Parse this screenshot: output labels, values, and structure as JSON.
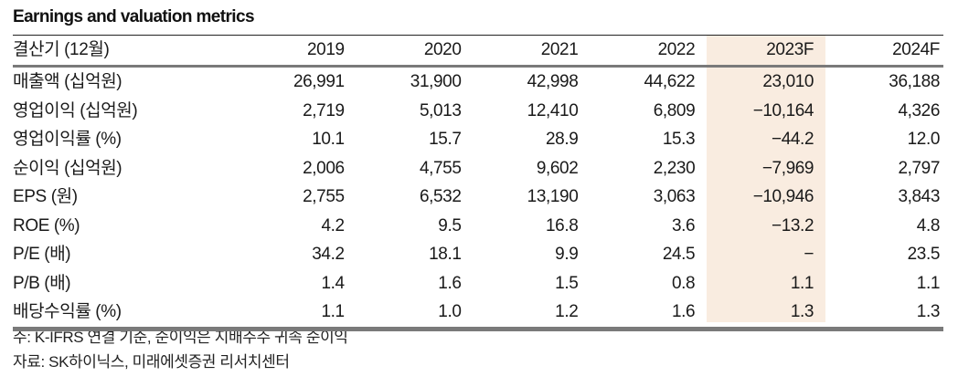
{
  "title": "Earnings and valuation metrics",
  "table": {
    "header": {
      "label": "결산기 (12월)",
      "columns": [
        "2019",
        "2020",
        "2021",
        "2022",
        "2023F",
        "2024F"
      ],
      "highlighted_column": "2023F",
      "highlight_color": "#f9ece0"
    },
    "rows": [
      {
        "label": "매출액 (십억원)",
        "values": [
          "26,991",
          "31,900",
          "42,998",
          "44,622",
          "23,010",
          "36,188"
        ]
      },
      {
        "label": "영업이익 (십억원)",
        "values": [
          "2,719",
          "5,013",
          "12,410",
          "6,809",
          "−10,164",
          "4,326"
        ]
      },
      {
        "label": "영업이익률 (%)",
        "values": [
          "10.1",
          "15.7",
          "28.9",
          "15.3",
          "−44.2",
          "12.0"
        ]
      },
      {
        "label": "순이익 (십억원)",
        "values": [
          "2,006",
          "4,755",
          "9,602",
          "2,230",
          "−7,969",
          "2,797"
        ]
      },
      {
        "label": "EPS (원)",
        "values": [
          "2,755",
          "6,532",
          "13,190",
          "3,063",
          "−10,946",
          "3,843"
        ]
      },
      {
        "label": "ROE (%)",
        "values": [
          "4.2",
          "9.5",
          "16.8",
          "3.6",
          "−13.2",
          "4.8"
        ]
      },
      {
        "label": "P/E (배)",
        "values": [
          "34.2",
          "18.1",
          "9.9",
          "24.5",
          "−",
          "23.5"
        ]
      },
      {
        "label": "P/B (배)",
        "values": [
          "1.4",
          "1.6",
          "1.5",
          "0.8",
          "1.1",
          "1.1"
        ]
      },
      {
        "label": "배당수익률 (%)",
        "values": [
          "1.1",
          "1.0",
          "1.2",
          "1.6",
          "1.3",
          "1.3"
        ]
      }
    ]
  },
  "notes": {
    "note": "주: K-IFRS 연결 기준, 순이익은 지배주주 귀속 순이익",
    "source": "자료: SK하이닉스, 미래에셋증권 리서치센터"
  }
}
